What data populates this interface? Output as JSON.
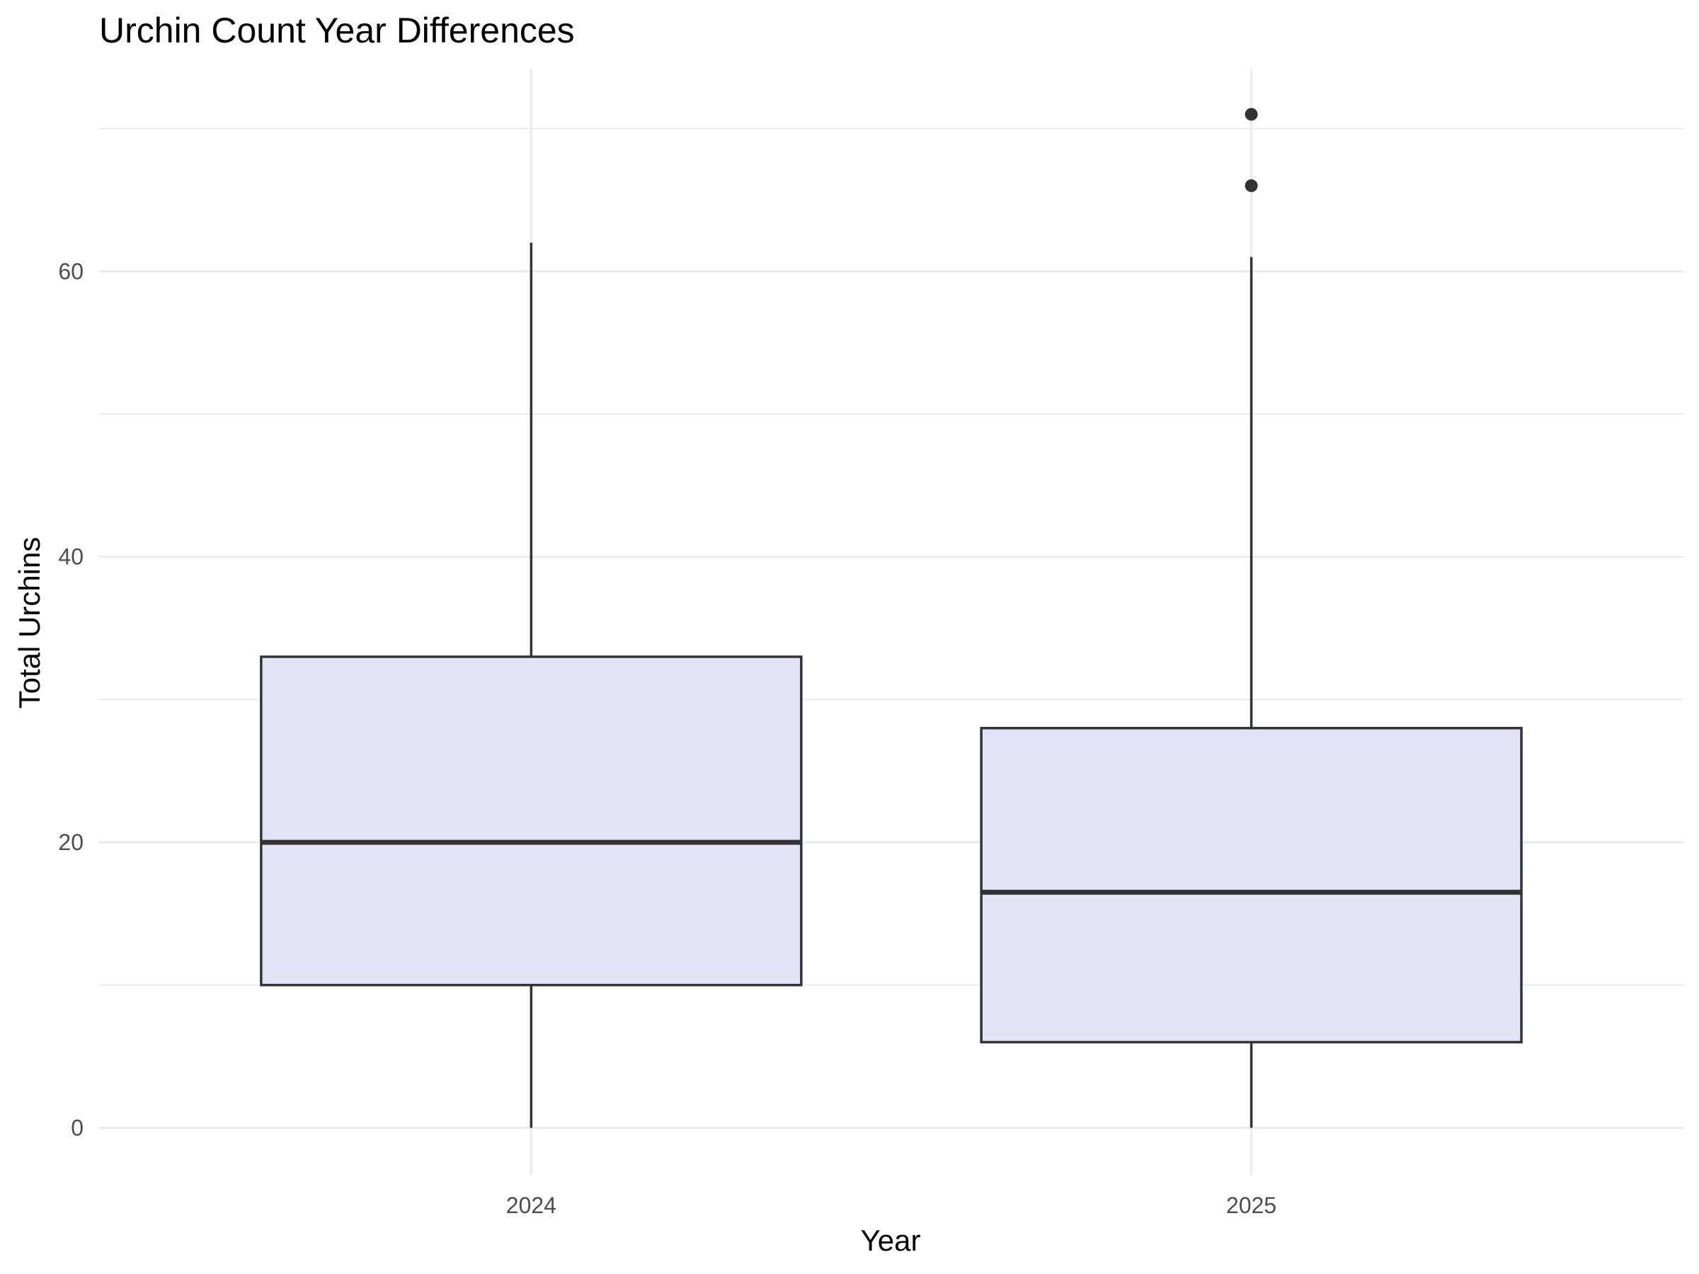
{
  "chart_data": {
    "type": "boxplot",
    "title": "Urchin Count Year Differences",
    "xlabel": "Year",
    "ylabel": "Total Urchins",
    "categories": [
      "2024",
      "2025"
    ],
    "boxes": [
      {
        "category": "2024",
        "min": 0,
        "q1": 10,
        "median": 20,
        "q3": 33,
        "max": 62,
        "outliers": []
      },
      {
        "category": "2025",
        "min": 0,
        "q1": 6,
        "median": 16.5,
        "q3": 28,
        "max": 61,
        "outliers": [
          66,
          71
        ]
      }
    ],
    "yticks": [
      0,
      20,
      40,
      60
    ],
    "ylim": [
      -3.3,
      74.2
    ],
    "grid": true,
    "fill_color": "#e4e4f7",
    "line_color": "#333333"
  }
}
